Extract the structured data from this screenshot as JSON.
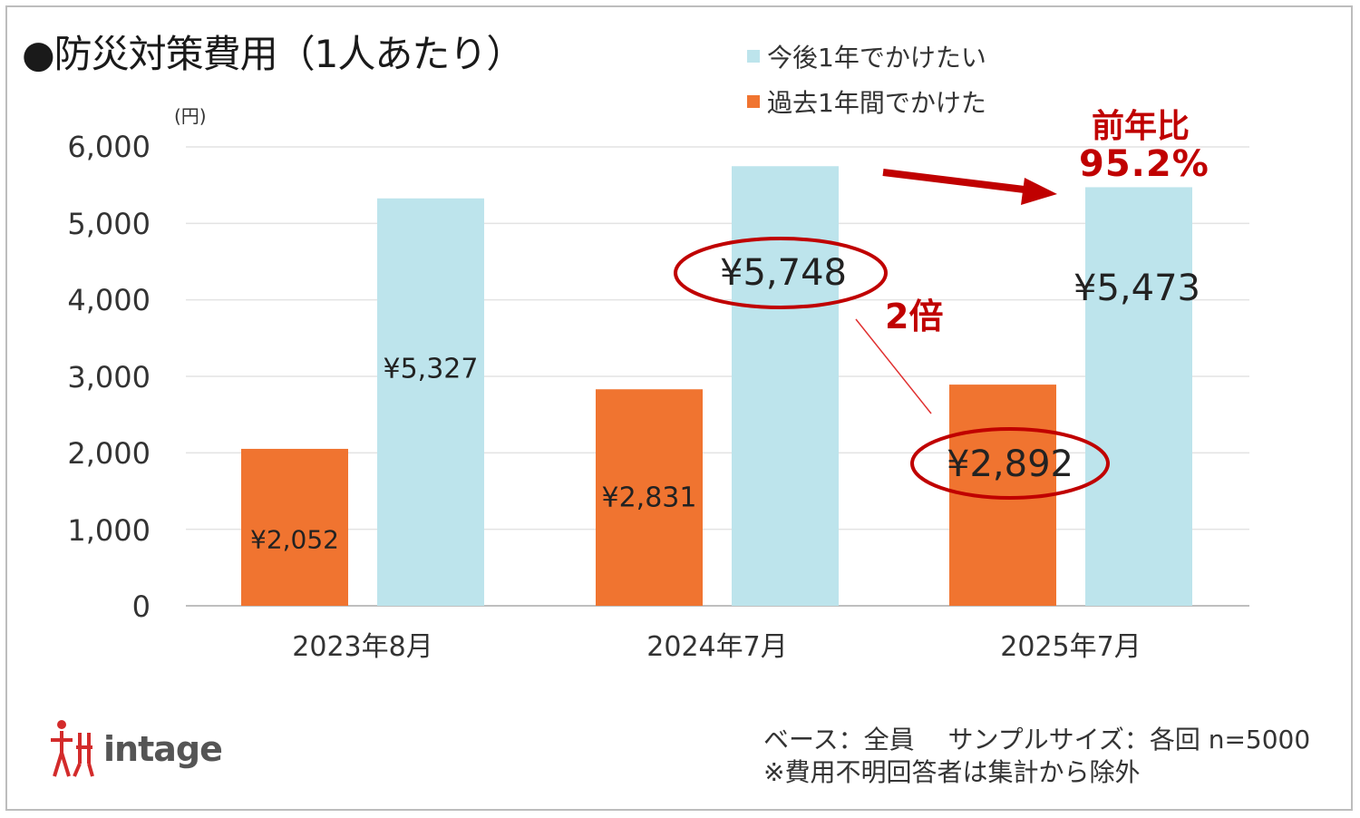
{
  "chart_data": {
    "type": "bar",
    "title": "●防災対策費用（1人あたり）",
    "unit_label": "(円)",
    "categories": [
      "2023年8月",
      "2024年7月",
      "2025年7月"
    ],
    "series": [
      {
        "name": "過去1年間でかけた",
        "color": "#f07430",
        "values": [
          2052,
          2831,
          2892
        ],
        "labels": [
          "¥2,052",
          "¥2,831",
          "¥2,892"
        ]
      },
      {
        "name": "今後1年でかけたい",
        "color": "#bde4ec",
        "values": [
          5327,
          5748,
          5473
        ],
        "labels": [
          "¥5,327",
          "¥5,748",
          "¥5,473"
        ]
      }
    ],
    "ylim": [
      0,
      6000
    ],
    "yticks": [
      "0",
      "1,000",
      "2,000",
      "3,000",
      "4,000",
      "5,000",
      "6,000"
    ],
    "grid": true,
    "legend_placement": "top-right",
    "annotations": {
      "ratio_label": "2倍",
      "yoy_label": "前年比",
      "yoy_value": "95.2%",
      "accent_color": "#c00000"
    }
  },
  "footer": {
    "logo_text": "intage",
    "base_note": "ベース：全員　 サンプルサイズ：各回 n=5000",
    "exclusion_note": "※費用不明回答者は集計から除外"
  }
}
